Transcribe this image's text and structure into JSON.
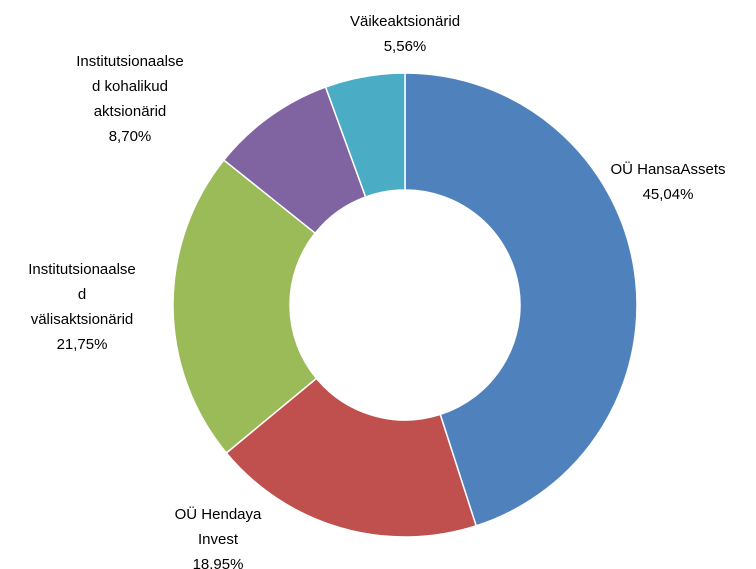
{
  "chart_data": {
    "type": "donut",
    "categories": [
      "OÜ HansaAssets",
      "OÜ Hendaya\nInvest",
      "Institutsionaalse\nd\nvälisaktsionärid",
      "Institutsionaalse\nd kohalikud\naktsionärid",
      "Väikeaktsionärid"
    ],
    "values": [
      45.04,
      18.95,
      21.75,
      8.7,
      5.56
    ],
    "value_labels": [
      "45,04%",
      "18,95%",
      "21,75%",
      "8,70%",
      "5,56%"
    ],
    "colors": [
      "#4f81bd",
      "#c0504d",
      "#9bbb59",
      "#8064a2",
      "#4bacc6"
    ]
  }
}
